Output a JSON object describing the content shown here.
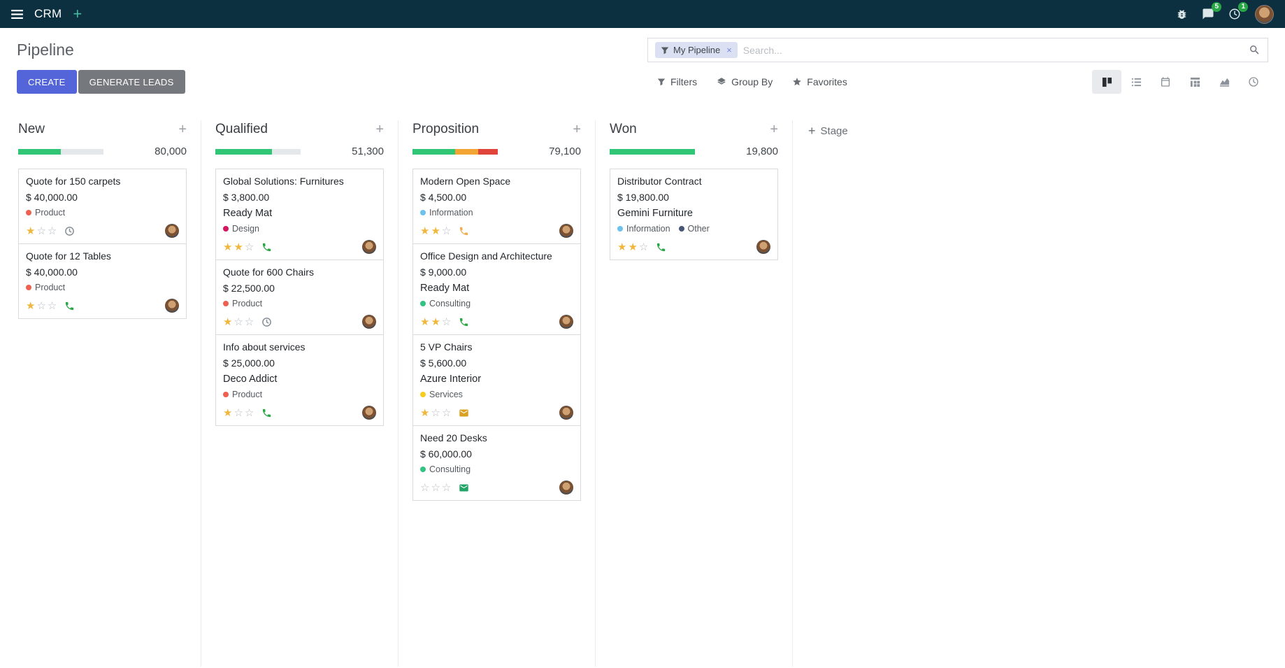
{
  "ui": {
    "plus": "+",
    "close": "×"
  },
  "navbar": {
    "app_name": "CRM",
    "messages_badge": "5",
    "activities_badge": "1"
  },
  "control_panel": {
    "title": "Pipeline",
    "create_label": "CREATE",
    "generate_leads_label": "GENERATE LEADS",
    "filters_label": "Filters",
    "group_by_label": "Group By",
    "favorites_label": "Favorites",
    "search": {
      "facet": "My Pipeline",
      "placeholder": "Search..."
    }
  },
  "view_switcher": {
    "active": "kanban",
    "views": [
      "kanban",
      "list",
      "calendar",
      "pivot",
      "graph",
      "activity"
    ]
  },
  "kanban": {
    "add_stage_label": "Stage",
    "columns": [
      {
        "name": "New",
        "counter": "80,000",
        "progress": [
          {
            "color": "#31c576",
            "pct": 50
          }
        ],
        "cards": [
          {
            "title": "Quote for 150 carpets",
            "amount": "$ 40,000.00",
            "tags": [
              {
                "label": "Product",
                "color": "#f06050"
              }
            ],
            "stars_filled": "★",
            "stars_empty": "☆☆",
            "activity_icon": "clock-icon",
            "activity_color": "#878f96"
          },
          {
            "title": "Quote for 12 Tables",
            "amount": "$ 40,000.00",
            "tags": [
              {
                "label": "Product",
                "color": "#f06050"
              }
            ],
            "stars_filled": "★",
            "stars_empty": "☆☆",
            "activity_icon": "phone-icon",
            "activity_color": "#28a745"
          }
        ]
      },
      {
        "name": "Qualified",
        "counter": "51,300",
        "progress": [
          {
            "color": "#31c576",
            "pct": 66
          }
        ],
        "cards": [
          {
            "title": "Global Solutions: Furnitures",
            "amount": "$ 3,800.00",
            "company": "Ready Mat",
            "tags": [
              {
                "label": "Design",
                "color": "#d6145f"
              }
            ],
            "stars_filled": "★★",
            "stars_empty": "☆",
            "activity_icon": "phone-icon",
            "activity_color": "#28a745"
          },
          {
            "title": "Quote for 600 Chairs",
            "amount": "$ 22,500.00",
            "tags": [
              {
                "label": "Product",
                "color": "#f06050"
              }
            ],
            "stars_filled": "★",
            "stars_empty": "☆☆",
            "activity_icon": "clock-icon",
            "activity_color": "#878f96"
          },
          {
            "title": "Info about services",
            "amount": "$ 25,000.00",
            "company": "Deco Addict",
            "tags": [
              {
                "label": "Product",
                "color": "#f06050"
              }
            ],
            "stars_filled": "★",
            "stars_empty": "☆☆",
            "activity_icon": "phone-icon",
            "activity_color": "#28a745"
          }
        ]
      },
      {
        "name": "Proposition",
        "counter": "79,100",
        "progress": [
          {
            "color": "#31c576",
            "pct": 50
          },
          {
            "color": "#f2a434",
            "pct": 27
          },
          {
            "color": "#e0443a",
            "pct": 23
          }
        ],
        "cards": [
          {
            "title": "Modern Open Space",
            "amount": "$ 4,500.00",
            "tags": [
              {
                "label": "Information",
                "color": "#6cc1ed"
              }
            ],
            "stars_filled": "★★",
            "stars_empty": "☆",
            "activity_icon": "phone-icon",
            "activity_color": "#f0ad4e"
          },
          {
            "title": "Office Design and Architecture",
            "amount": "$ 9,000.00",
            "company": "Ready Mat",
            "tags": [
              {
                "label": "Consulting",
                "color": "#30c381"
              }
            ],
            "stars_filled": "★★",
            "stars_empty": "☆",
            "activity_icon": "phone-icon",
            "activity_color": "#28a745"
          },
          {
            "title": "5 VP Chairs",
            "amount": "$ 5,600.00",
            "company": "Azure Interior",
            "tags": [
              {
                "label": "Services",
                "color": "#f7cd1f"
              }
            ],
            "stars_filled": "★",
            "stars_empty": "☆☆",
            "activity_icon": "envelope-icon",
            "activity_color": "#d9a021"
          },
          {
            "title": "Need 20 Desks",
            "amount": "$ 60,000.00",
            "tags": [
              {
                "label": "Consulting",
                "color": "#30c381"
              }
            ],
            "stars_filled": "",
            "stars_empty": "☆☆☆",
            "activity_icon": "envelope-icon",
            "activity_color": "#21a567"
          }
        ]
      },
      {
        "name": "Won",
        "counter": "19,800",
        "progress": [
          {
            "color": "#31c576",
            "pct": 100
          }
        ],
        "cards": [
          {
            "title": "Distributor Contract",
            "amount": "$ 19,800.00",
            "company": "Gemini Furniture",
            "tags": [
              {
                "label": "Information",
                "color": "#6cc1ed"
              },
              {
                "label": "Other",
                "color": "#475577"
              }
            ],
            "stars_filled": "★★",
            "stars_empty": "☆",
            "activity_icon": "phone-icon",
            "activity_color": "#28a745"
          }
        ]
      }
    ]
  }
}
